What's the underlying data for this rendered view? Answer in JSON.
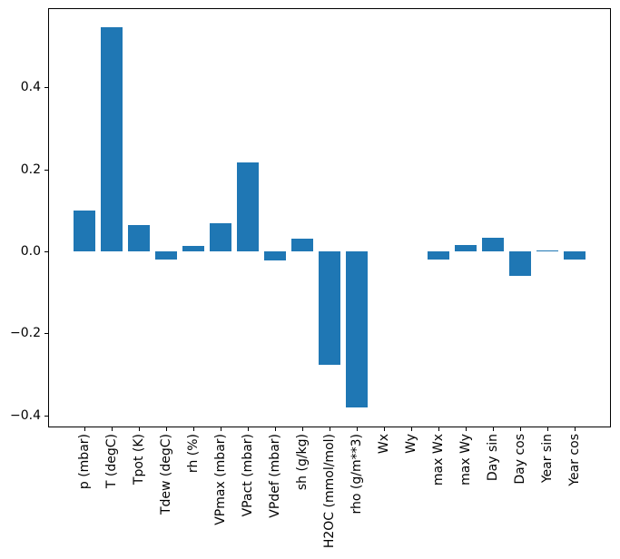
{
  "figure": {
    "background": "#ffffff",
    "spine_color": "#000000",
    "tick_color": "#000000"
  },
  "chart_data": {
    "type": "bar",
    "title": "",
    "xlabel": "",
    "ylabel": "",
    "categories": [
      "p (mbar)",
      "T (degC)",
      "Tpot (K)",
      "Tdew (degC)",
      "rh (%)",
      "VPmax (mbar)",
      "VPact (mbar)",
      "VPdef (mbar)",
      "sh (g/kg)",
      "H2OC (mmol/mol)",
      "rho (g/m**3)",
      "Wx",
      "Wy",
      "max Wx",
      "max Wy",
      "Day sin",
      "Day cos",
      "Year sin",
      "Year cos"
    ],
    "values": [
      0.1,
      0.548,
      0.064,
      -0.02,
      0.013,
      0.068,
      0.218,
      -0.023,
      0.032,
      -0.276,
      -0.38,
      0.0,
      0.0,
      -0.02,
      0.016,
      0.034,
      -0.059,
      0.002,
      -0.02
    ],
    "bar_color": "#1f77b4",
    "bar_width": 0.8,
    "yticks": [
      0.4,
      0.2,
      0.0,
      -0.2,
      -0.4
    ],
    "ytick_labels": [
      "0.4",
      "0.2",
      "0.0",
      "−0.2",
      "−0.4"
    ],
    "ylim": [
      -0.4295,
      0.5935
    ],
    "xlim": [
      -1.34,
      19.34
    ],
    "grid": false,
    "legend": null,
    "x_tick_label_rotation_deg": 90
  }
}
